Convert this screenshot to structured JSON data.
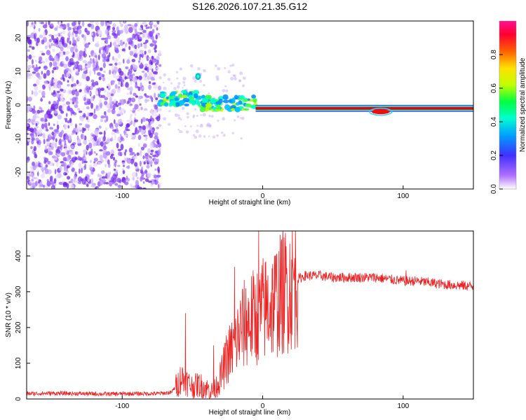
{
  "title": "S126.2026.107.21.35.G12",
  "chart_data": [
    {
      "type": "heatmap",
      "title": "S126.2026.107.21.35.G12",
      "xlabel": "Height of straight line (km)",
      "ylabel": "Frequency (Hz)",
      "xlim": [
        -168,
        150
      ],
      "ylim": [
        -25,
        25
      ],
      "xticks": [
        -100,
        0,
        100
      ],
      "yticks": [
        -20,
        -10,
        0,
        10,
        20
      ],
      "colorbar": {
        "label": "Normalized spectral amplitude",
        "range": [
          0.0,
          1.0
        ],
        "ticks": [
          0.0,
          0.2,
          0.4,
          0.6,
          0.8
        ]
      },
      "regions": [
        {
          "name": "noise",
          "x_range": [
            -168,
            -73
          ],
          "f_range": [
            -25,
            25
          ],
          "amplitude": 0.05
        },
        {
          "name": "transition",
          "x_range": [
            -73,
            -5
          ],
          "f_range": [
            -3,
            4
          ],
          "amplitude": 0.4
        },
        {
          "name": "tone",
          "x_range": [
            -5,
            150
          ],
          "frequency": -1,
          "amplitude": 0.95
        }
      ]
    },
    {
      "type": "line",
      "xlabel": "Height of straight line (km)",
      "ylabel": "SNR (10 * v/v)",
      "xlim": [
        -168,
        150
      ],
      "ylim": [
        0,
        470
      ],
      "xticks": [
        -100,
        0,
        100
      ],
      "yticks": [
        0,
        100,
        200,
        300,
        400
      ],
      "series": [
        {
          "name": "SNR",
          "color": "#ee2222",
          "x": [
            -168,
            -150,
            -130,
            -110,
            -90,
            -75,
            -65,
            -60,
            -58,
            -55,
            -50,
            -45,
            -40,
            -35,
            -30,
            -25,
            -20,
            -15,
            -10,
            -5,
            0,
            5,
            10,
            15,
            20,
            25,
            30,
            40,
            50,
            60,
            70,
            80,
            90,
            100,
            110,
            120,
            130,
            140,
            150
          ],
          "y": [
            15,
            16,
            15,
            14,
            15,
            15,
            18,
            45,
            60,
            50,
            35,
            40,
            30,
            20,
            60,
            120,
            150,
            200,
            220,
            230,
            250,
            260,
            280,
            300,
            320,
            335,
            345,
            345,
            340,
            340,
            340,
            340,
            335,
            330,
            330,
            325,
            320,
            318,
            315
          ]
        }
      ],
      "spikes": [
        [
          -55,
          240
        ],
        [
          -20,
          370
        ],
        [
          -3,
          470
        ],
        [
          -12,
          310
        ],
        [
          -35,
          150
        ],
        [
          102,
          360
        ]
      ]
    }
  ]
}
